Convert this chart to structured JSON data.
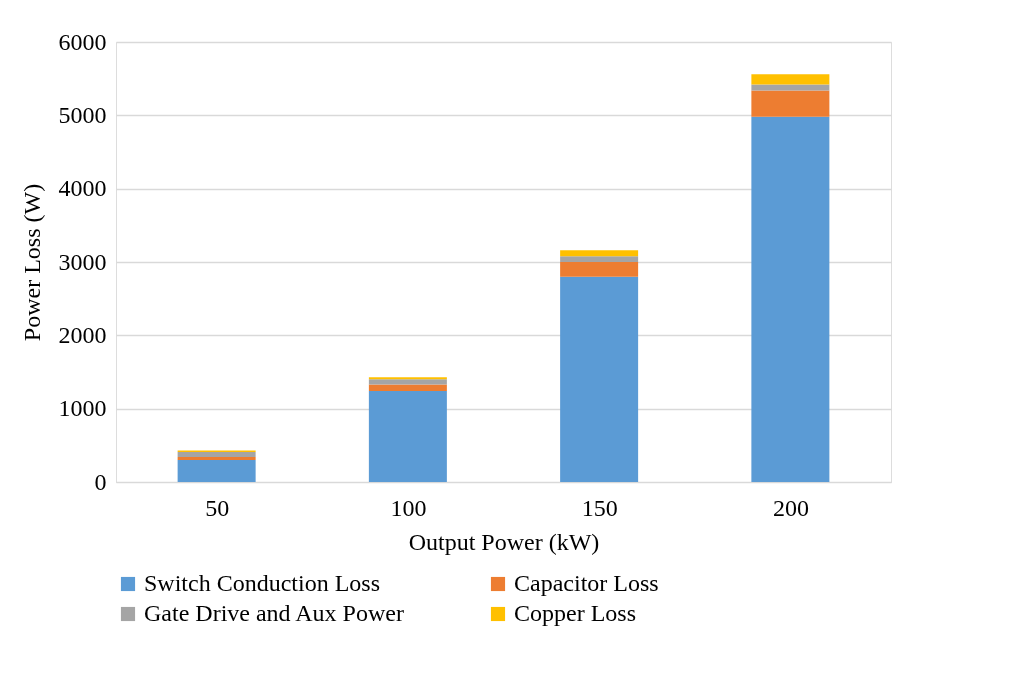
{
  "chart_data": {
    "type": "bar",
    "stacked": true,
    "xlabel": "Output Power (kW)",
    "ylabel": "Power Loss (W)",
    "categories": [
      "50",
      "100",
      "150",
      "200"
    ],
    "series": [
      {
        "name": "Switch Conduction Loss",
        "color": "#5b9bd5",
        "values": [
          300,
          1240,
          2800,
          4980
        ]
      },
      {
        "name": "Capacitor Loss",
        "color": "#ed7d31",
        "values": [
          40,
          90,
          200,
          360
        ]
      },
      {
        "name": "Gate Drive and Aux Power",
        "color": "#a5a5a5",
        "values": [
          70,
          70,
          80,
          80
        ]
      },
      {
        "name": "Copper Loss",
        "color": "#ffc000",
        "values": [
          20,
          30,
          80,
          140
        ]
      }
    ],
    "ylim": [
      0,
      6000
    ],
    "yticks": [
      0,
      1000,
      2000,
      3000,
      4000,
      5000,
      6000
    ],
    "grid": "y",
    "legend": "bottom"
  }
}
